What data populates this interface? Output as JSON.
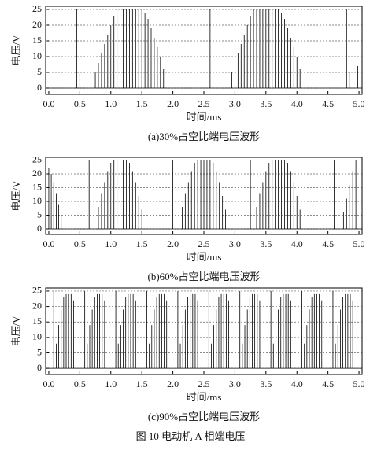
{
  "chart_data": [
    {
      "type": "stem",
      "caption": "(a)30%占空比端电压波形",
      "xlabel": "时间/ms",
      "ylabel": "电压/V",
      "color": "#000000",
      "grid": true,
      "xlim": [
        -0.05,
        5.05
      ],
      "ylim": [
        -2,
        26
      ],
      "xticks": [
        {
          "value": 0,
          "label": "0.0"
        },
        {
          "value": 0.5,
          "label": "0.5"
        },
        {
          "value": 1,
          "label": "1.0"
        },
        {
          "value": 1.5,
          "label": "1.5"
        },
        {
          "value": 2,
          "label": "2.0"
        },
        {
          "value": 2.5,
          "label": "2.5"
        },
        {
          "value": 3,
          "label": "3.0"
        },
        {
          "value": 3.5,
          "label": "3.5"
        },
        {
          "value": 4,
          "label": "4.0"
        },
        {
          "value": 4.5,
          "label": "4.5"
        },
        {
          "value": 5,
          "label": "5.0"
        }
      ],
      "yticks": [
        0,
        5,
        10,
        15,
        20,
        25
      ],
      "x": [
        0.45,
        0.5,
        0.75,
        0.8,
        0.85,
        0.9,
        0.95,
        1.0,
        1.05,
        1.1,
        1.15,
        1.2,
        1.25,
        1.3,
        1.35,
        1.4,
        1.45,
        1.5,
        1.55,
        1.6,
        1.65,
        1.7,
        1.75,
        1.8,
        1.85,
        2.6,
        2.95,
        3.0,
        3.05,
        3.1,
        3.15,
        3.2,
        3.25,
        3.3,
        3.35,
        3.4,
        3.45,
        3.5,
        3.55,
        3.6,
        3.65,
        3.7,
        3.75,
        3.8,
        3.85,
        3.9,
        3.95,
        4.0,
        4.05,
        4.8,
        4.85,
        4.98
      ],
      "values": [
        25,
        5,
        5,
        8,
        11,
        14,
        17,
        20,
        23,
        25,
        25,
        25,
        25,
        25,
        25,
        25,
        25,
        25,
        24,
        22,
        19,
        16,
        13,
        10,
        6,
        25,
        5,
        8,
        11,
        14,
        17,
        20,
        23,
        25,
        25,
        25,
        25,
        25,
        25,
        25,
        25,
        25,
        24,
        22,
        19,
        16,
        13,
        10,
        6,
        25,
        5,
        7
      ]
    },
    {
      "type": "stem",
      "caption": "(b)60%占空比端电压波形",
      "xlabel": "时间/ms",
      "ylabel": "电压/V",
      "color": "#000000",
      "grid": true,
      "xlim": [
        -0.05,
        5.05
      ],
      "ylim": [
        -2,
        26
      ],
      "xticks": [
        {
          "value": 0,
          "label": "0.0"
        },
        {
          "value": 0.5,
          "label": "0.5"
        },
        {
          "value": 1,
          "label": "1.0"
        },
        {
          "value": 1.5,
          "label": "1.5"
        },
        {
          "value": 2,
          "label": "2.0"
        },
        {
          "value": 2.5,
          "label": "2.5"
        },
        {
          "value": 3,
          "label": "3.0"
        },
        {
          "value": 3.5,
          "label": "3.5"
        },
        {
          "value": 4,
          "label": "4.0"
        },
        {
          "value": 4.5,
          "label": "4.5"
        },
        {
          "value": 5,
          "label": "5.0"
        }
      ],
      "yticks": [
        0,
        5,
        10,
        15,
        20,
        25
      ],
      "x": [
        0.0,
        0.04,
        0.08,
        0.12,
        0.16,
        0.2,
        0.65,
        0.8,
        0.85,
        0.9,
        0.95,
        1.0,
        1.05,
        1.1,
        1.15,
        1.2,
        1.25,
        1.3,
        1.35,
        1.4,
        1.45,
        1.5,
        2.0,
        2.15,
        2.2,
        2.25,
        2.3,
        2.35,
        2.4,
        2.45,
        2.5,
        2.55,
        2.6,
        2.65,
        2.7,
        2.75,
        2.8,
        2.85,
        3.25,
        3.35,
        3.4,
        3.45,
        3.5,
        3.55,
        3.6,
        3.65,
        3.7,
        3.75,
        3.8,
        3.85,
        3.9,
        3.95,
        4.0,
        4.05,
        4.6,
        4.75,
        4.8,
        4.85,
        4.9,
        4.95
      ],
      "values": [
        22,
        20,
        17,
        13,
        9,
        5,
        25,
        8,
        13,
        17,
        21,
        24,
        25,
        25,
        25,
        25,
        25,
        24,
        21,
        17,
        12,
        7,
        25,
        8,
        13,
        17,
        21,
        24,
        25,
        25,
        25,
        25,
        25,
        24,
        21,
        17,
        12,
        7,
        25,
        8,
        13,
        17,
        21,
        24,
        25,
        25,
        25,
        25,
        25,
        24,
        21,
        17,
        12,
        7,
        25,
        6,
        11,
        16,
        21,
        25
      ]
    },
    {
      "type": "stem",
      "caption": "(c)90%占空比端电压波形",
      "xlabel": "时间/ms",
      "ylabel": "电压/V",
      "color": "#000000",
      "grid": true,
      "xlim": [
        -0.05,
        5.05
      ],
      "ylim": [
        -2,
        26
      ],
      "xticks": [
        {
          "value": 0,
          "label": "0.0"
        },
        {
          "value": 0.5,
          "label": "0.5"
        },
        {
          "value": 1,
          "label": "1.0"
        },
        {
          "value": 1.5,
          "label": "1.5"
        },
        {
          "value": 2,
          "label": "2.0"
        },
        {
          "value": 2.5,
          "label": "2.5"
        },
        {
          "value": 3,
          "label": "3.0"
        },
        {
          "value": 3.5,
          "label": "3.5"
        },
        {
          "value": 4,
          "label": "4.0"
        },
        {
          "value": 4.5,
          "label": "4.5"
        },
        {
          "value": 5,
          "label": "5.0"
        }
      ],
      "yticks": [
        0,
        5,
        10,
        15,
        20,
        25
      ],
      "x": [
        0.08,
        0.12,
        0.16,
        0.2,
        0.24,
        0.28,
        0.32,
        0.36,
        0.4,
        0.58,
        0.62,
        0.66,
        0.7,
        0.74,
        0.78,
        0.82,
        0.86,
        0.9,
        1.08,
        1.12,
        1.16,
        1.2,
        1.24,
        1.28,
        1.32,
        1.36,
        1.4,
        1.58,
        1.62,
        1.66,
        1.7,
        1.74,
        1.78,
        1.82,
        1.86,
        1.9,
        2.08,
        2.12,
        2.16,
        2.2,
        2.24,
        2.28,
        2.32,
        2.36,
        2.4,
        2.58,
        2.62,
        2.66,
        2.7,
        2.74,
        2.78,
        2.82,
        2.86,
        2.9,
        3.08,
        3.12,
        3.16,
        3.2,
        3.24,
        3.28,
        3.32,
        3.36,
        3.4,
        3.58,
        3.62,
        3.66,
        3.7,
        3.74,
        3.78,
        3.82,
        3.86,
        3.9,
        4.08,
        4.12,
        4.16,
        4.2,
        4.24,
        4.28,
        4.32,
        4.36,
        4.4,
        4.58,
        4.62,
        4.66,
        4.7,
        4.74,
        4.78,
        4.82,
        4.86,
        4.9
      ],
      "values": [
        25,
        8,
        14,
        19,
        23,
        24,
        24,
        24,
        22,
        25,
        8,
        14,
        19,
        23,
        24,
        24,
        24,
        22,
        25,
        8,
        14,
        19,
        23,
        24,
        24,
        24,
        22,
        25,
        8,
        14,
        19,
        23,
        24,
        24,
        24,
        22,
        25,
        8,
        14,
        19,
        23,
        24,
        24,
        24,
        22,
        25,
        8,
        14,
        19,
        23,
        24,
        24,
        24,
        22,
        25,
        8,
        14,
        19,
        23,
        24,
        24,
        24,
        22,
        25,
        8,
        14,
        19,
        23,
        24,
        24,
        24,
        22,
        25,
        8,
        14,
        19,
        23,
        24,
        24,
        24,
        22,
        25,
        8,
        14,
        19,
        23,
        24,
        24,
        24,
        22
      ]
    }
  ],
  "figure_caption": "图 10  电动机 A 相端电压"
}
